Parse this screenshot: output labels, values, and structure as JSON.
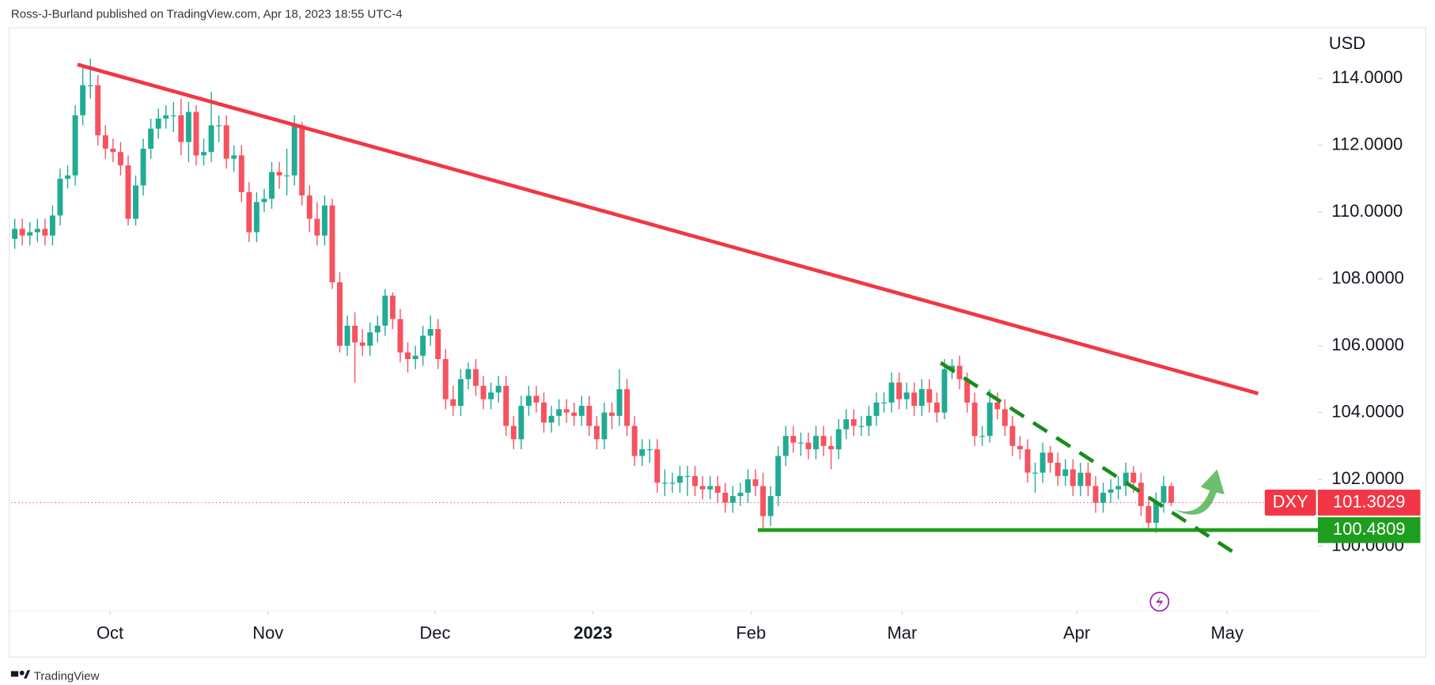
{
  "header": "Ross-J-Burland published on TradingView.com, Apr 18, 2023 18:55 UTC-4",
  "footer": "TradingView",
  "chart_data": {
    "type": "candlestick",
    "symbol": "DXY",
    "currency": "USD",
    "up_color": "#22ab94",
    "down_color": "#f7525f",
    "xlim": [
      -0.5,
      172.4
    ],
    "ylim": [
      98.06,
      115.52
    ],
    "xticks": [
      {
        "value": 12.6,
        "label": "Oct"
      },
      {
        "value": 33.5,
        "label": "Nov"
      },
      {
        "value": 55.6,
        "label": "Dec"
      },
      {
        "value": 76.5,
        "label": "2023"
      },
      {
        "value": 97.4,
        "label": "Feb"
      },
      {
        "value": 117.4,
        "label": "Mar"
      },
      {
        "value": 140.5,
        "label": "Apr"
      },
      {
        "value": 160.4,
        "label": "May"
      }
    ],
    "yticks": [
      {
        "value": 100,
        "label": "100.0000"
      },
      {
        "value": 102,
        "label": "102.0000"
      },
      {
        "value": 104,
        "label": "104.0000"
      },
      {
        "value": 106,
        "label": "106.0000"
      },
      {
        "value": 108,
        "label": "108.0000"
      },
      {
        "value": 110,
        "label": "110.0000"
      },
      {
        "value": 112,
        "label": "112.0000"
      },
      {
        "value": 114,
        "label": "114.0000"
      }
    ],
    "last_price": 101.3029,
    "last_price_color": "#f23645",
    "support_price": 100.4809,
    "support_color": "#1e9e1e",
    "open": [
      109.2,
      109.5,
      109.3,
      109.4,
      109.5,
      109.3,
      109.9,
      111.0,
      111.1,
      112.9,
      113.8,
      113.8,
      112.3,
      111.9,
      111.8,
      111.4,
      109.8,
      110.8,
      111.9,
      112.5,
      112.8,
      112.9,
      112.9,
      112.1,
      113.0,
      111.7,
      111.8,
      112.6,
      112.6,
      111.6,
      111.7,
      110.6,
      109.4,
      110.3,
      110.4,
      111.2,
      111.1,
      111.1,
      112.6,
      110.5,
      109.8,
      109.3,
      110.2,
      107.9,
      106.0,
      106.6,
      106.1,
      106.0,
      106.4,
      106.6,
      107.5,
      106.8,
      105.8,
      105.6,
      105.7,
      106.3,
      106.5,
      105.6,
      104.4,
      104.2,
      105.0,
      105.3,
      104.8,
      104.4,
      104.6,
      104.8,
      103.6,
      103.2,
      104.2,
      104.5,
      104.3,
      103.7,
      103.9,
      104.1,
      104.0,
      103.9,
      104.2,
      103.6,
      103.2,
      104.0,
      103.9,
      104.7,
      103.6,
      102.7,
      102.9,
      102.9,
      101.9,
      101.9,
      101.9,
      102.1,
      102.1,
      101.8,
      101.7,
      101.8,
      101.6,
      101.3,
      101.5,
      101.6,
      102.0,
      101.8,
      100.9,
      101.5,
      102.7,
      103.3,
      103.1,
      103.1,
      102.9,
      103.3,
      103.0,
      102.9,
      103.5,
      103.8,
      103.6,
      103.6,
      103.9,
      104.3,
      104.3,
      104.9,
      104.4,
      104.6,
      104.2,
      104.7,
      104.3,
      104.0,
      105.3,
      105.4,
      105.0,
      104.3,
      103.3,
      103.3,
      104.3,
      104.1,
      103.6,
      103.0,
      102.9,
      102.2,
      102.2,
      102.8,
      102.5,
      102.1,
      102.3,
      101.8,
      102.2,
      101.8,
      101.3,
      101.6,
      101.7,
      101.8,
      102.2,
      101.9,
      101.2,
      100.7,
      101.3,
      101.8
    ],
    "high": [
      109.8,
      109.8,
      109.7,
      109.8,
      109.8,
      110.2,
      111.3,
      111.4,
      113.2,
      114.4,
      114.6,
      114.1,
      112.6,
      112.2,
      112.1,
      111.7,
      111.1,
      112.2,
      112.8,
      113.1,
      113.2,
      113.3,
      113.4,
      113.3,
      113.2,
      112.2,
      113.6,
      112.9,
      112.9,
      112.0,
      112.0,
      110.9,
      110.6,
      110.7,
      111.5,
      111.5,
      111.9,
      112.9,
      112.7,
      110.8,
      110.3,
      110.5,
      110.4,
      108.2,
      106.9,
      107.0,
      106.5,
      106.7,
      106.9,
      107.7,
      107.6,
      107.1,
      106.1,
      106.0,
      106.6,
      106.9,
      106.8,
      105.9,
      104.8,
      105.3,
      105.5,
      105.6,
      105.1,
      104.9,
      105.1,
      105.1,
      103.9,
      104.5,
      104.8,
      104.8,
      104.6,
      104.2,
      104.4,
      104.4,
      104.3,
      104.5,
      104.5,
      103.9,
      104.3,
      104.3,
      105.3,
      105.0,
      103.9,
      103.2,
      103.2,
      103.2,
      102.3,
      102.2,
      102.4,
      102.4,
      102.4,
      102.1,
      102.1,
      102.1,
      101.9,
      101.8,
      101.9,
      102.3,
      102.3,
      102.2,
      101.8,
      103.0,
      103.6,
      103.6,
      103.4,
      103.4,
      103.6,
      103.6,
      103.3,
      103.8,
      104.1,
      104.1,
      103.9,
      104.2,
      104.6,
      104.6,
      105.2,
      105.2,
      104.9,
      104.9,
      105.0,
      105.0,
      104.6,
      105.6,
      105.6,
      105.7,
      105.2,
      104.6,
      103.6,
      104.7,
      104.6,
      104.4,
      103.9,
      103.3,
      103.2,
      102.5,
      103.1,
      103.0,
      102.8,
      102.6,
      102.6,
      102.5,
      102.5,
      102.1,
      101.9,
      102.0,
      102.1,
      102.5,
      102.4,
      102.2,
      101.5,
      101.6,
      102.1,
      101.9
    ],
    "low": [
      108.9,
      109.0,
      109.0,
      109.1,
      109.0,
      109.0,
      109.6,
      110.7,
      110.8,
      112.6,
      113.4,
      112.0,
      111.6,
      111.5,
      111.1,
      109.6,
      109.6,
      110.5,
      111.6,
      112.2,
      112.5,
      112.4,
      111.7,
      111.5,
      111.4,
      111.4,
      111.5,
      112.1,
      111.3,
      111.2,
      110.3,
      109.1,
      109.1,
      110.0,
      110.1,
      110.7,
      110.5,
      110.8,
      110.2,
      109.4,
      109.0,
      109.0,
      107.7,
      105.8,
      105.7,
      104.9,
      105.7,
      105.7,
      106.1,
      106.3,
      106.5,
      105.5,
      105.2,
      105.3,
      105.4,
      106.0,
      105.3,
      104.1,
      103.9,
      103.9,
      104.7,
      104.5,
      104.1,
      104.1,
      104.3,
      103.3,
      102.9,
      102.9,
      103.9,
      104.0,
      103.4,
      103.4,
      103.6,
      103.7,
      103.6,
      103.6,
      103.3,
      102.9,
      102.9,
      103.5,
      103.6,
      103.3,
      102.4,
      102.4,
      102.5,
      101.6,
      101.5,
      101.6,
      101.6,
      101.5,
      101.5,
      101.4,
      101.4,
      101.3,
      101.0,
      101.0,
      101.2,
      101.3,
      101.5,
      100.5,
      100.6,
      101.2,
      102.4,
      102.8,
      102.7,
      102.6,
      102.6,
      102.7,
      102.3,
      102.6,
      103.2,
      103.3,
      103.3,
      103.3,
      103.6,
      104.0,
      104.0,
      104.1,
      104.1,
      103.9,
      103.9,
      104.0,
      103.7,
      103.8,
      105.0,
      104.7,
      104.0,
      103.0,
      103.0,
      103.1,
      103.8,
      103.3,
      102.7,
      102.6,
      101.9,
      101.6,
      101.9,
      102.2,
      101.8,
      101.8,
      101.5,
      101.5,
      101.5,
      101.0,
      101.0,
      101.3,
      101.4,
      101.5,
      101.6,
      100.9,
      100.5,
      100.4,
      101.0,
      101.2
    ],
    "close": [
      109.5,
      109.3,
      109.4,
      109.5,
      109.3,
      109.9,
      111.0,
      111.1,
      112.9,
      113.8,
      113.8,
      112.3,
      111.9,
      111.8,
      111.4,
      109.8,
      110.8,
      111.9,
      112.5,
      112.8,
      112.9,
      112.9,
      112.1,
      113.0,
      111.7,
      111.8,
      112.6,
      112.6,
      111.6,
      111.7,
      110.6,
      109.4,
      110.3,
      110.4,
      111.2,
      111.1,
      111.1,
      112.6,
      110.5,
      109.8,
      109.3,
      110.2,
      107.9,
      106.0,
      106.6,
      106.1,
      106.0,
      106.4,
      106.6,
      107.5,
      106.8,
      105.8,
      105.6,
      105.7,
      106.3,
      106.5,
      105.6,
      104.4,
      104.2,
      105.0,
      105.3,
      104.8,
      104.4,
      104.6,
      104.8,
      103.6,
      103.2,
      104.2,
      104.5,
      104.3,
      103.7,
      103.9,
      104.1,
      104.0,
      103.9,
      104.2,
      103.6,
      103.2,
      104.0,
      103.9,
      104.7,
      103.6,
      102.7,
      102.9,
      102.9,
      101.9,
      101.9,
      101.9,
      102.1,
      102.1,
      101.8,
      101.7,
      101.8,
      101.6,
      101.3,
      101.5,
      101.6,
      102.0,
      101.8,
      100.9,
      101.5,
      102.7,
      103.3,
      103.1,
      103.1,
      102.9,
      103.3,
      103.0,
      102.9,
      103.5,
      103.8,
      103.6,
      103.6,
      103.9,
      104.3,
      104.3,
      104.9,
      104.4,
      104.6,
      104.2,
      104.7,
      104.3,
      104.0,
      105.3,
      105.4,
      105.0,
      104.3,
      103.3,
      103.3,
      104.3,
      104.1,
      103.6,
      103.0,
      102.9,
      102.2,
      102.2,
      102.8,
      102.5,
      102.1,
      102.3,
      101.8,
      102.2,
      101.8,
      101.3,
      101.6,
      101.7,
      101.8,
      102.2,
      101.9,
      101.2,
      100.7,
      101.3,
      101.8,
      101.3
    ],
    "drawings": [
      {
        "color": "#f23645",
        "dashed": false,
        "x": [
          8.3,
          164.5
        ],
        "y": [
          114.42,
          104.57
        ]
      },
      {
        "color": "#1e9e1e",
        "dashed": false,
        "x": [
          98.3,
          172.4
        ],
        "y": [
          100.4809,
          100.4809
        ]
      },
      {
        "color": "#1a8c1a",
        "dashed": true,
        "x": [
          122.5,
          161.5
        ],
        "y": [
          105.49,
          99.78
        ]
      }
    ]
  }
}
